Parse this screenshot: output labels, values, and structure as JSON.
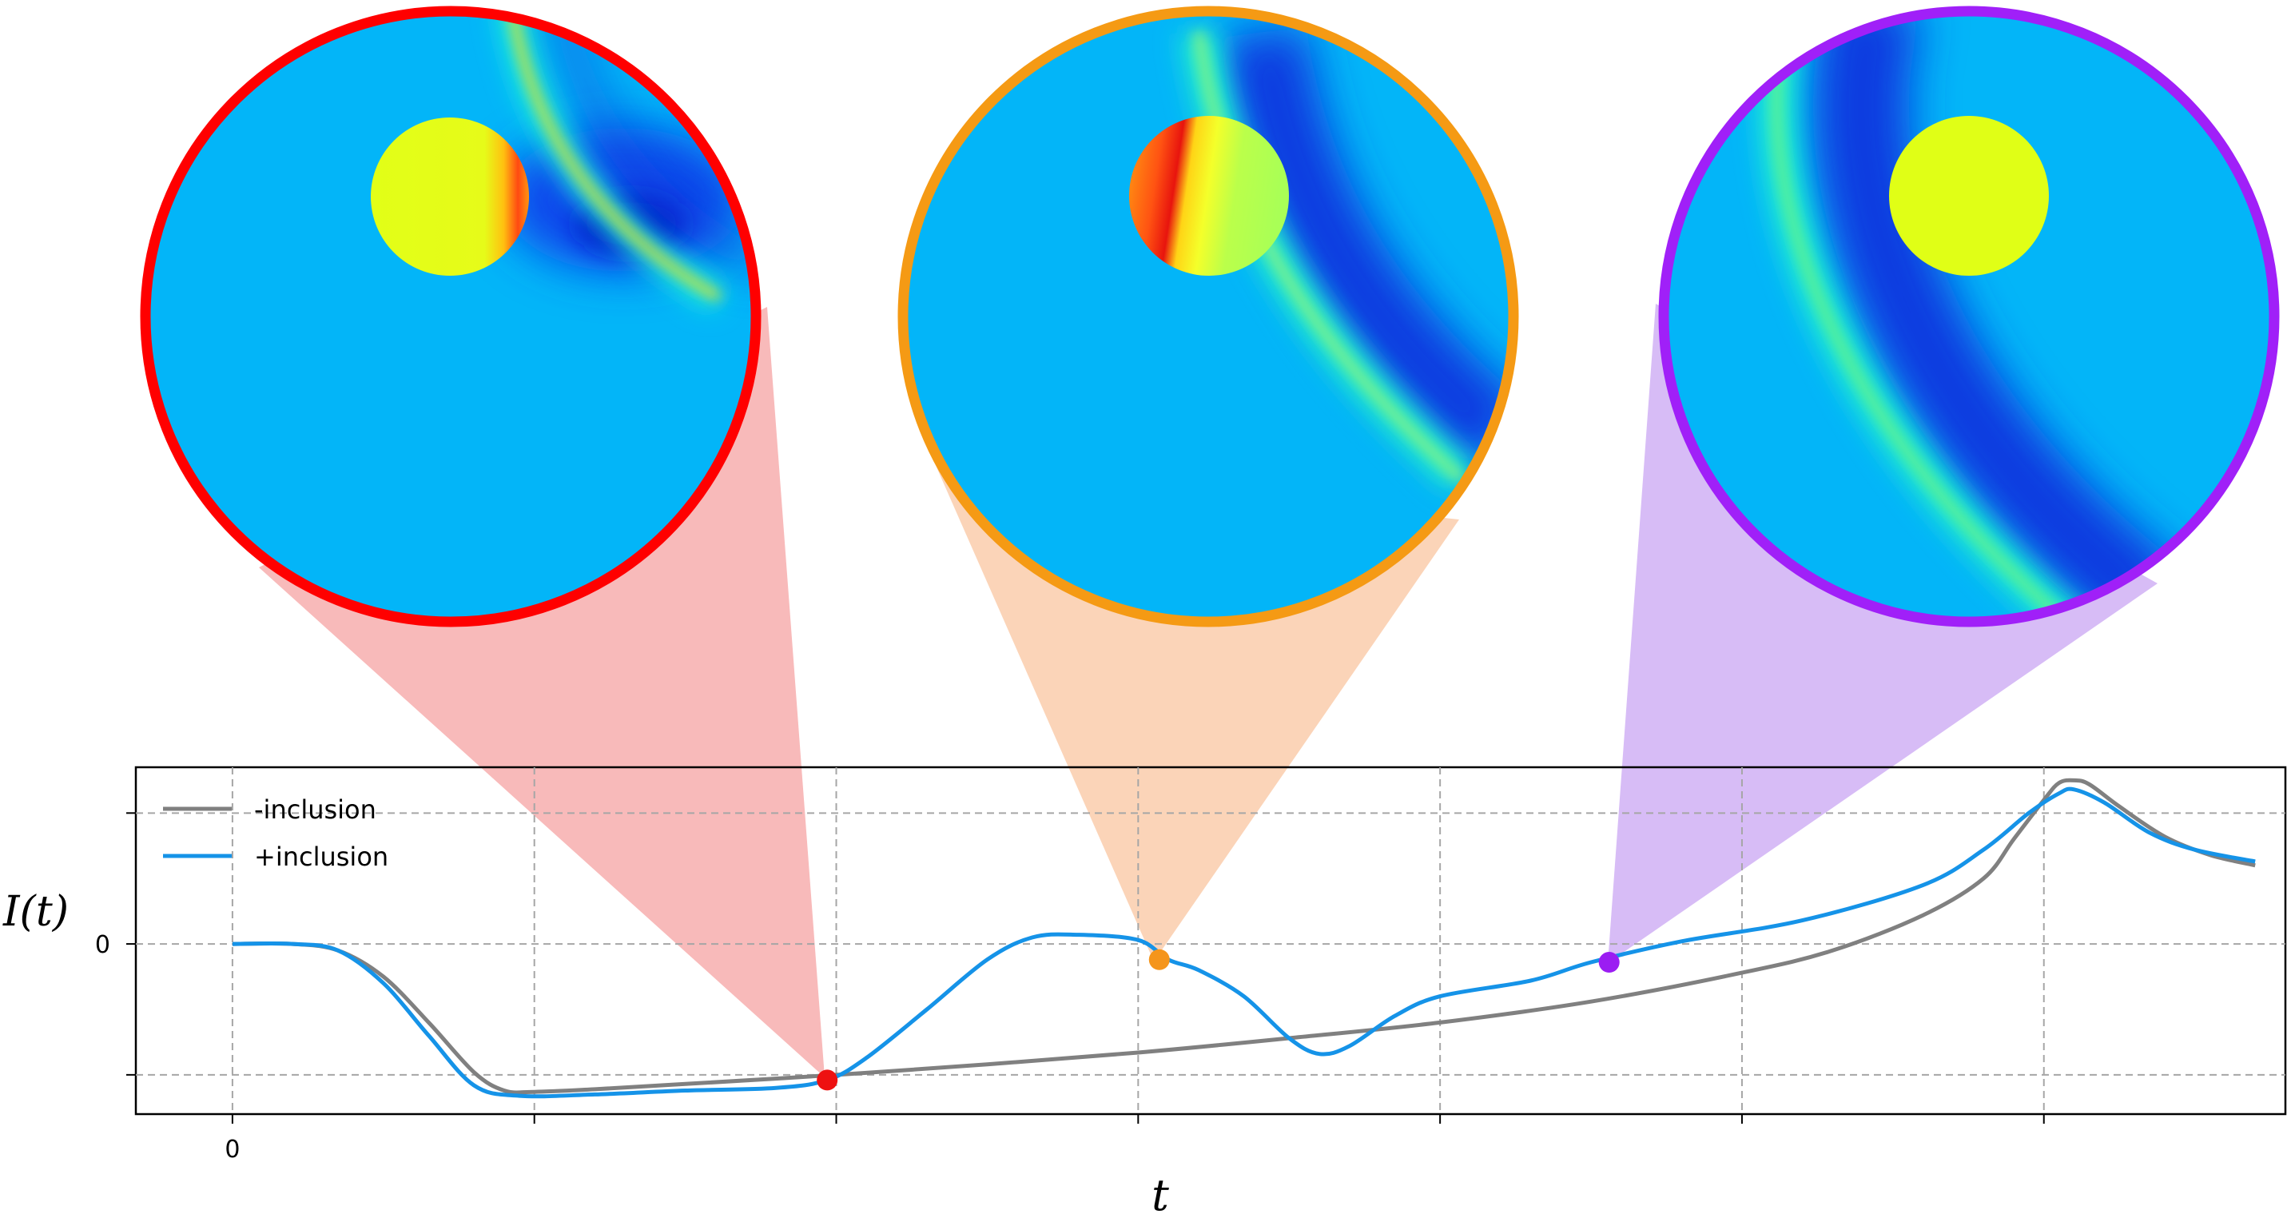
{
  "chart_data": {
    "type": "line",
    "xlabel": "t",
    "ylabel": "I(t)",
    "x_tick_labels": [
      "0"
    ],
    "y_tick_labels": [
      "0"
    ],
    "xlim": [
      -0.32,
      6.8
    ],
    "ylim": [
      -1.3,
      1.35
    ],
    "grid": true,
    "legend_position": "top-left",
    "series": [
      {
        "name": "-inclusion",
        "color": "#808080",
        "points": [
          [
            0.0,
            0.0
          ],
          [
            0.2,
            0.0
          ],
          [
            0.35,
            -0.05
          ],
          [
            0.5,
            -0.25
          ],
          [
            0.65,
            -0.6
          ],
          [
            0.8,
            -0.98
          ],
          [
            0.9,
            -1.12
          ],
          [
            1.0,
            -1.13
          ],
          [
            1.2,
            -1.11
          ],
          [
            1.5,
            -1.07
          ],
          [
            2.0,
            -1.0
          ],
          [
            2.5,
            -0.92
          ],
          [
            3.0,
            -0.83
          ],
          [
            3.5,
            -0.72
          ],
          [
            4.0,
            -0.6
          ],
          [
            4.5,
            -0.44
          ],
          [
            5.0,
            -0.22
          ],
          [
            5.3,
            -0.05
          ],
          [
            5.6,
            0.22
          ],
          [
            5.8,
            0.5
          ],
          [
            5.9,
            0.8
          ],
          [
            6.0,
            1.1
          ],
          [
            6.05,
            1.23
          ],
          [
            6.1,
            1.25
          ],
          [
            6.15,
            1.22
          ],
          [
            6.25,
            1.05
          ],
          [
            6.4,
            0.82
          ],
          [
            6.55,
            0.68
          ],
          [
            6.7,
            0.6
          ]
        ]
      },
      {
        "name": "+inclusion",
        "color": "#1593e8",
        "points": [
          [
            0.0,
            0.0
          ],
          [
            0.2,
            0.0
          ],
          [
            0.35,
            -0.05
          ],
          [
            0.5,
            -0.3
          ],
          [
            0.65,
            -0.7
          ],
          [
            0.8,
            -1.08
          ],
          [
            0.95,
            -1.16
          ],
          [
            1.2,
            -1.15
          ],
          [
            1.5,
            -1.12
          ],
          [
            1.8,
            -1.1
          ],
          [
            1.97,
            -1.04
          ],
          [
            2.1,
            -0.87
          ],
          [
            2.3,
            -0.5
          ],
          [
            2.5,
            -0.12
          ],
          [
            2.65,
            0.05
          ],
          [
            2.8,
            0.07
          ],
          [
            3.0,
            0.03
          ],
          [
            3.1,
            -0.12
          ],
          [
            3.2,
            -0.2
          ],
          [
            3.35,
            -0.4
          ],
          [
            3.5,
            -0.72
          ],
          [
            3.6,
            -0.84
          ],
          [
            3.7,
            -0.78
          ],
          [
            3.85,
            -0.55
          ],
          [
            4.0,
            -0.4
          ],
          [
            4.3,
            -0.28
          ],
          [
            4.5,
            -0.14
          ],
          [
            4.8,
            0.02
          ],
          [
            5.2,
            0.18
          ],
          [
            5.6,
            0.45
          ],
          [
            5.8,
            0.72
          ],
          [
            5.95,
            1.0
          ],
          [
            6.05,
            1.15
          ],
          [
            6.1,
            1.18
          ],
          [
            6.2,
            1.08
          ],
          [
            6.35,
            0.85
          ],
          [
            6.5,
            0.72
          ],
          [
            6.7,
            0.63
          ]
        ]
      }
    ],
    "markers": [
      {
        "x": 1.97,
        "y": -1.04,
        "color": "#ee1111",
        "panel_color": "#ff0000",
        "wedge_color": "#f8baba"
      },
      {
        "x": 3.07,
        "y": -0.12,
        "color": "#f5951b",
        "panel_color": "#f59a14",
        "wedge_color": "#fbd4b8"
      },
      {
        "x": 4.56,
        "y": -0.14,
        "color": "#9b1df2",
        "panel_color": "#a020f8",
        "wedge_color": "#d7bcf6"
      }
    ],
    "snapshots": [
      {
        "frame": "1",
        "border_color": "#ff0000"
      },
      {
        "frame": "2",
        "border_color": "#f59a14"
      },
      {
        "frame": "3",
        "border_color": "#a020f8"
      }
    ]
  }
}
